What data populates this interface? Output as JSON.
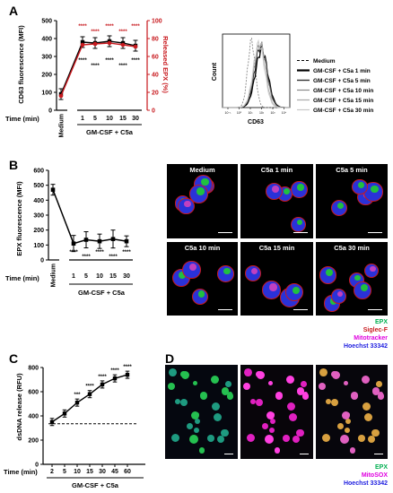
{
  "panels": {
    "a": "A",
    "b": "B",
    "c": "C",
    "d": "D"
  },
  "colors": {
    "black": "#000000",
    "red": "#c8191e",
    "epx": "#00b050",
    "siglec": "#c8191e",
    "mito": "#e000e0",
    "hoechst": "#2020e0"
  },
  "panelA": {
    "y_label_left": "CD63 fluorescence (MFI)",
    "y_label_right": "Released EPX (%)",
    "time_label": "Time (min)",
    "x_categories": [
      "Medium",
      "1",
      "5",
      "10",
      "15",
      "30"
    ],
    "group_label": "GM-CSF + C5a",
    "yticks_left": [
      "0",
      "100",
      "200",
      "300",
      "400",
      "500"
    ],
    "yticks_right": [
      "0",
      "20",
      "40",
      "60",
      "80",
      "100"
    ],
    "sig_red": [
      "****",
      "****",
      "****",
      "****",
      "****"
    ],
    "sig_black": [
      "****",
      "****",
      "****",
      "****",
      "****"
    ]
  },
  "histogram": {
    "y_label": "Count",
    "x_label": "CD63",
    "x_ticks": [
      "10⁻¹",
      "10⁰",
      "10¹",
      "10²",
      "10³",
      "10⁴"
    ],
    "legend": [
      "Medium",
      "GM-CSF + C5a 1 min",
      "GM-CSF + C5a 5 min",
      "GM-CSF + C5a 10 min",
      "GM-CSF + C5a 15 min",
      "GM-CSF + C5a 30 min"
    ]
  },
  "panelB": {
    "y_label": "EPX fluorescence (MFI)",
    "time_label": "Time (min)",
    "x_categories": [
      "Medium",
      "1",
      "5",
      "10",
      "15",
      "30"
    ],
    "group_label": "GM-CSF + C5a",
    "yticks": [
      "0",
      "100",
      "200",
      "300",
      "400",
      "500",
      "600"
    ],
    "sig": [
      "****",
      "****",
      "****",
      "****",
      "****"
    ],
    "images": [
      "Medium",
      "C5a 1 min",
      "C5a 5 min",
      "C5a 10 min",
      "C5a 15 min",
      "C5a 30 min"
    ],
    "stains": [
      "EPX",
      "Siglec-F",
      "Mitotracker",
      "Hoechst 33342"
    ]
  },
  "panelC": {
    "y_label": "dsDNA release (RFU)",
    "time_label": "Time (min)",
    "x_categories": [
      "2",
      "5",
      "10",
      "15",
      "30",
      "45",
      "60"
    ],
    "group_label": "GM-CSF + C5a",
    "yticks": [
      "0",
      "200",
      "400",
      "600",
      "800"
    ],
    "sig": [
      "***",
      "****",
      "****",
      "****",
      "****"
    ]
  },
  "panelD": {
    "stains": [
      "EPX",
      "MitoSOX",
      "Hoechst 33342"
    ]
  },
  "chart_data": [
    {
      "type": "line",
      "panel": "A",
      "categories": [
        "Medium",
        "1",
        "5",
        "10",
        "15",
        "30"
      ],
      "series": [
        {
          "name": "",
          "axis": "left",
          "values": [
            90,
            380,
            375,
            385,
            375,
            360
          ]
        },
        {
          "name": "",
          "axis": "right",
          "values": [
            16,
            73,
            74,
            75,
            73,
            71
          ]
        }
      ],
      "ylabel": "CD63 fluorescence (MFI)",
      "ylabel_right": "Released EPX (%)",
      "ylim": [
        0,
        500
      ],
      "ylim_right": [
        0,
        100
      ]
    },
    {
      "type": "line",
      "panel": "B",
      "categories": [
        "Medium",
        "1",
        "5",
        "10",
        "15",
        "30"
      ],
      "series": [
        {
          "name": "",
          "values": [
            470,
            110,
            135,
            125,
            140,
            125
          ]
        }
      ],
      "ylabel": "EPX fluorescence (MFI)",
      "ylim": [
        0,
        600
      ]
    },
    {
      "type": "line",
      "panel": "C",
      "categories": [
        "2",
        "5",
        "10",
        "15",
        "30",
        "45",
        "60"
      ],
      "series": [
        {
          "name": "",
          "values": [
            350,
            420,
            510,
            580,
            660,
            710,
            740
          ]
        }
      ],
      "reference_line": 335,
      "ylabel": "dsDNA release (RFU)",
      "ylim": [
        0,
        800
      ]
    }
  ]
}
